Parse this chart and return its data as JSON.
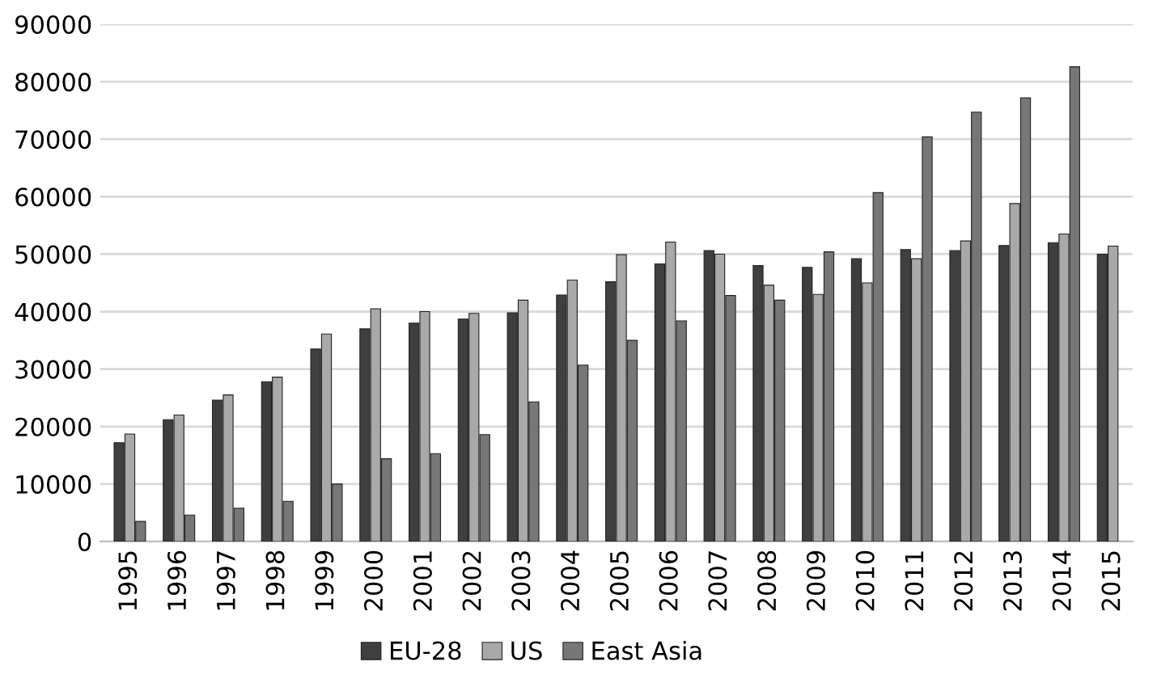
{
  "chart_data": {
    "type": "bar",
    "categories": [
      "1995",
      "1996",
      "1997",
      "1998",
      "1999",
      "2000",
      "2001",
      "2002",
      "2003",
      "2004",
      "2005",
      "2006",
      "2007",
      "2008",
      "2009",
      "2010",
      "2011",
      "2012",
      "2013",
      "2014",
      "2015"
    ],
    "series": [
      {
        "name": "EU-28",
        "color": "#3f3f3f",
        "values": [
          17200,
          21200,
          24600,
          27800,
          33500,
          37000,
          38000,
          38700,
          39800,
          42900,
          45200,
          48300,
          50600,
          48000,
          47700,
          49200,
          50800,
          50600,
          51500,
          52000,
          50000
        ]
      },
      {
        "name": "US",
        "color": "#a9a9a9",
        "values": [
          18700,
          22000,
          25500,
          28600,
          36100,
          40500,
          40000,
          39700,
          42000,
          45500,
          49900,
          52100,
          50000,
          44600,
          43000,
          45000,
          49200,
          52300,
          58800,
          53500,
          51400
        ]
      },
      {
        "name": "East Asia",
        "color": "#777777",
        "values": [
          3500,
          4600,
          5800,
          7000,
          10000,
          14400,
          15300,
          18600,
          24300,
          30700,
          35000,
          38400,
          42800,
          42000,
          50400,
          60700,
          70400,
          74700,
          77200,
          82600,
          null
        ]
      }
    ],
    "ylim": [
      0,
      90000
    ],
    "yticks": [
      0,
      10000,
      20000,
      30000,
      40000,
      50000,
      60000,
      70000,
      80000,
      90000
    ],
    "grid": "y",
    "legend": "bottom"
  }
}
